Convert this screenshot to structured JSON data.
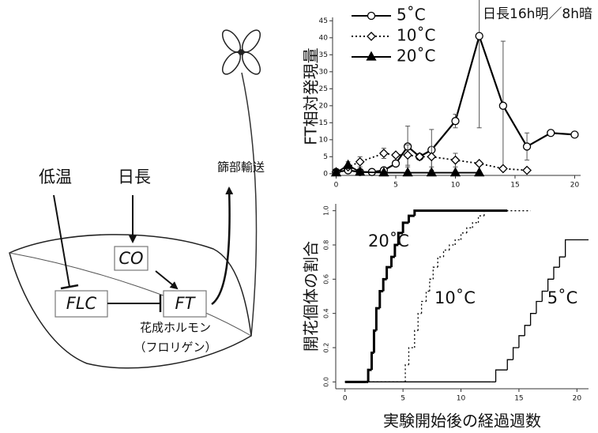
{
  "chart_data": [
    {
      "type": "line",
      "title": "日長16h明／8h暗",
      "ylabel": "FT相対発現量",
      "xlim": [
        -0.3,
        20.5
      ],
      "ylim": [
        -0.5,
        46
      ],
      "xticks": [
        0,
        5,
        10,
        15,
        20
      ],
      "yticks": [
        0,
        5,
        10,
        15,
        20,
        25,
        30,
        35,
        40,
        45
      ],
      "legend": "upper left",
      "series": [
        {
          "name": "5˚C",
          "color": "#000000",
          "marker": "circle",
          "linestyle": "solid",
          "x": [
            0,
            1,
            2,
            3,
            4,
            5,
            6,
            7,
            8,
            10,
            12,
            14,
            16,
            18,
            20
          ],
          "values": [
            0.5,
            1,
            0.5,
            0.5,
            1,
            3,
            8,
            5,
            7,
            15.5,
            40.5,
            20,
            8,
            12,
            11.5
          ],
          "errors": [
            null,
            null,
            null,
            null,
            null,
            null,
            6,
            null,
            6,
            2,
            27,
            19,
            4,
            null,
            null
          ]
        },
        {
          "name": "10˚C",
          "color": "#000000",
          "marker": "diamond",
          "linestyle": "dotted",
          "x": [
            0,
            1,
            2,
            4,
            5,
            6,
            7,
            8,
            10,
            12,
            14,
            16
          ],
          "values": [
            0.5,
            2,
            3.5,
            6,
            5.5,
            5.5,
            5,
            5,
            4,
            3,
            1.5,
            1
          ],
          "errors": [
            null,
            null,
            1.5,
            1.5,
            null,
            3,
            null,
            3,
            2,
            null,
            null,
            null
          ]
        },
        {
          "name": "20˚C",
          "color": "#000000",
          "marker": "triangle",
          "linestyle": "solid",
          "x": [
            0,
            1,
            2,
            4,
            6,
            8,
            10,
            12
          ],
          "values": [
            0.3,
            2.5,
            0.5,
            0.3,
            0.3,
            0.3,
            0.3,
            0.3
          ],
          "errors": [
            null,
            1,
            null,
            null,
            null,
            null,
            null,
            null
          ]
        }
      ]
    },
    {
      "type": "step",
      "xlabel": "実験開始後の経過週数",
      "ylabel": "開花個体の割合",
      "xlim": [
        -0.8,
        21
      ],
      "ylim": [
        -0.04,
        1.04
      ],
      "xticks": [
        0,
        5,
        10,
        15,
        20
      ],
      "yticks": [
        {
          "value": 0,
          "label": "0.0"
        },
        0.2,
        0.4,
        0.6,
        0.8,
        {
          "value": 1,
          "label": "1.0"
        }
      ],
      "series": [
        {
          "name": "20˚C",
          "color": "#000000",
          "linestyle": "solid",
          "width": 3,
          "x": [
            0,
            1.8,
            2.0,
            2.3,
            2.5,
            2.7,
            3.0,
            3.3,
            3.6,
            4.0,
            4.3,
            4.6,
            5.0,
            5.5,
            6.0,
            14.0
          ],
          "values": [
            0,
            0,
            0.07,
            0.17,
            0.3,
            0.43,
            0.53,
            0.6,
            0.67,
            0.73,
            0.8,
            0.87,
            0.93,
            0.97,
            1.0,
            1.0
          ]
        },
        {
          "name": "10˚C",
          "color": "#000000",
          "linestyle": "dotted",
          "width": 1.3,
          "x": [
            0,
            5,
            5.2,
            5.5,
            6,
            6.3,
            6.6,
            7,
            7.3,
            7.6,
            8,
            8.5,
            9,
            9.5,
            10,
            10.5,
            11,
            11.5,
            12,
            16
          ],
          "values": [
            0,
            0,
            0.1,
            0.2,
            0.3,
            0.4,
            0.47,
            0.53,
            0.6,
            0.67,
            0.73,
            0.77,
            0.8,
            0.83,
            0.87,
            0.9,
            0.93,
            0.97,
            1.0,
            1.0
          ]
        },
        {
          "name": "5˚C",
          "color": "#000000",
          "linestyle": "solid",
          "width": 1.3,
          "x": [
            0,
            12.6,
            13,
            14,
            14.5,
            15,
            15.5,
            16,
            16.5,
            17,
            17.5,
            18,
            18.5,
            19,
            21
          ],
          "values": [
            0,
            0,
            0.07,
            0.13,
            0.2,
            0.27,
            0.33,
            0.4,
            0.47,
            0.53,
            0.6,
            0.67,
            0.73,
            0.83,
            0.83
          ]
        }
      ]
    }
  ],
  "diagram": {
    "cold": "低温",
    "daylength": "日長",
    "co": "CO",
    "flc": "FLC",
    "ft": "FT",
    "hormone": "花成ホルモン",
    "florigen": "（フロリゲン）",
    "phloem": "篩部輸送"
  }
}
